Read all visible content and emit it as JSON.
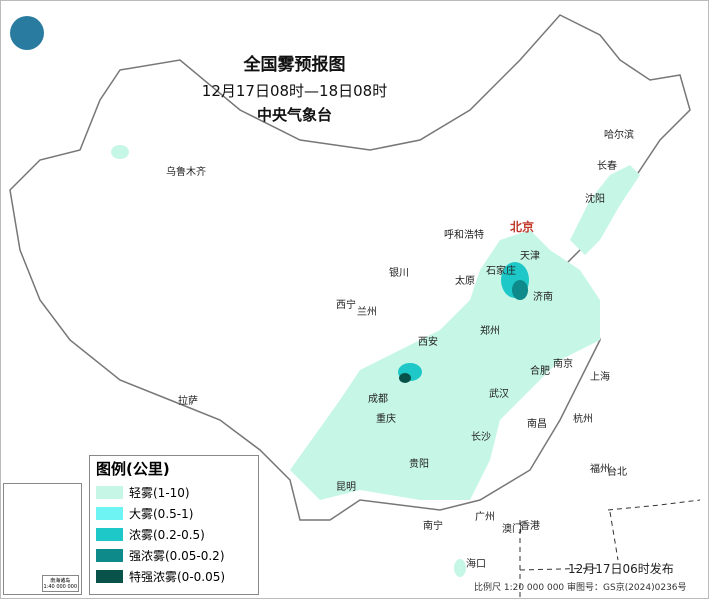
{
  "header": {
    "title": "全国雾预报图",
    "period": "12月17日08时—18日08时",
    "issuer": "中央气象台",
    "logo": "cma-logo"
  },
  "legend": {
    "title": "图例(公里)",
    "items": [
      {
        "label": "轻雾(1-10)",
        "color": "#c6f6e6"
      },
      {
        "label": "大雾(0.5-1)",
        "color": "#6ff4f4"
      },
      {
        "label": "浓雾(0.2-0.5)",
        "color": "#1ec8c8"
      },
      {
        "label": "强浓雾(0.05-0.2)",
        "color": "#0e8a8a"
      },
      {
        "label": "特强浓雾(0-0.05)",
        "color": "#08524a"
      }
    ]
  },
  "inset": {
    "label": "南海诸岛",
    "scale": "1:40 000 000"
  },
  "cities": [
    "北京",
    "天津",
    "石家庄",
    "济南",
    "太原",
    "呼和浩特",
    "沈阳",
    "长春",
    "哈尔滨",
    "乌鲁木齐",
    "银川",
    "西宁",
    "兰州",
    "西安",
    "郑州",
    "合肥",
    "南京",
    "上海",
    "杭州",
    "武汉",
    "成都",
    "重庆",
    "贵阳",
    "长沙",
    "南昌",
    "福州",
    "台北",
    "昆明",
    "南宁",
    "广州",
    "澳门",
    "香港",
    "海口",
    "拉萨"
  ],
  "issued": "12月17日06时发布",
  "footer": "比例尺 1:20 000 000    审图号：GS京(2024)0236号"
}
